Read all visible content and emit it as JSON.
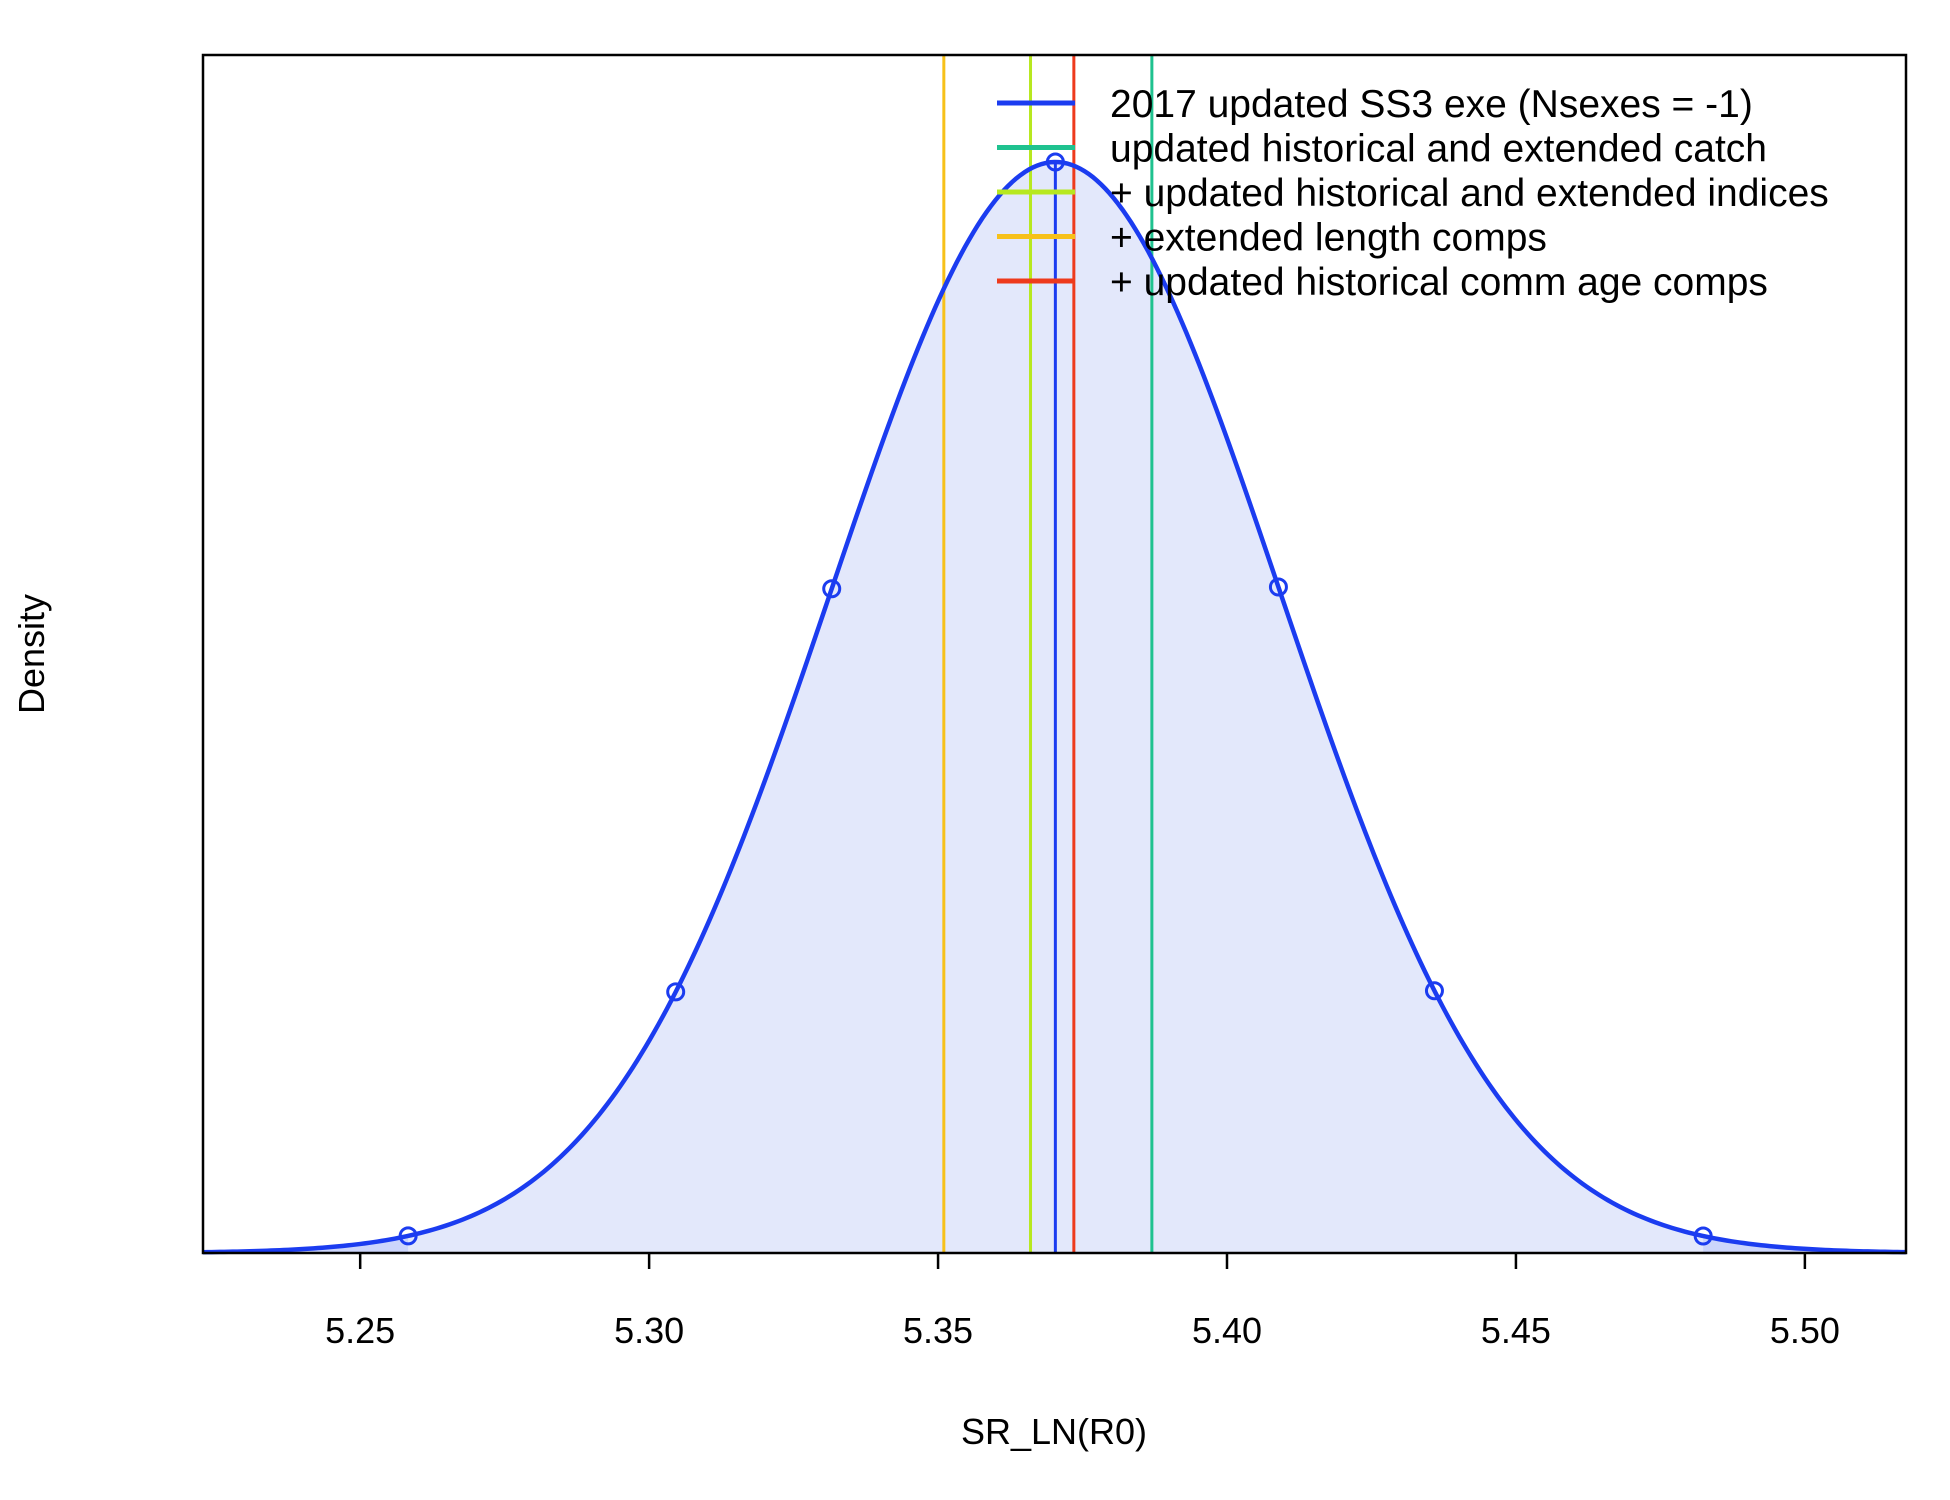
{
  "chart_data": {
    "type": "area",
    "title": "",
    "xlabel": "SR_LN(R0)",
    "ylabel": "Density",
    "xlim": [
      5.2228,
      5.5175
    ],
    "x_ticks": [
      5.25,
      5.3,
      5.35,
      5.4,
      5.45,
      5.5
    ],
    "x_tick_labels": [
      "5.25",
      "5.30",
      "5.35",
      "5.40",
      "5.45",
      "5.50"
    ],
    "y_ticks_shown": false,
    "grid": false,
    "legend_position": "top-right",
    "distribution": {
      "name": "2017 updated SS3 exe (Nsexes = -1)",
      "kind": "normal",
      "mean": 5.3703,
      "sd": 0.03885,
      "color": "#1b3cf0",
      "fill_color": "#e3e8fb",
      "tail_fill_color": "#ccd5fb",
      "tail_bounds": [
        5.2583,
        5.4824
      ],
      "marker_x": [
        5.2583,
        5.3046,
        5.3316,
        5.3703,
        5.4089,
        5.4359,
        5.4824
      ]
    },
    "vertical_lines": [
      {
        "name": "updated historical and extended catch",
        "x": 5.387,
        "color": "#1fc28f"
      },
      {
        "name": "+ updated historical and extended indices",
        "x": 5.366,
        "color": "#b7e81f"
      },
      {
        "name": "+ extended length comps",
        "x": 5.351,
        "color": "#f7c11a"
      },
      {
        "name": "+ updated historical comm age comps",
        "x": 5.3735,
        "color": "#ee3a1c"
      }
    ],
    "legend": [
      {
        "label": "2017 updated SS3 exe (Nsexes = -1)",
        "color": "#1b3cf0"
      },
      {
        "label": "updated historical and extended catch",
        "color": "#1fc28f"
      },
      {
        "label": "+ updated historical and extended indices",
        "color": "#b7e81f"
      },
      {
        "label": "+ extended length comps",
        "color": "#f7c11a"
      },
      {
        "label": "+ updated historical comm age comps",
        "color": "#ee3a1c"
      }
    ]
  }
}
